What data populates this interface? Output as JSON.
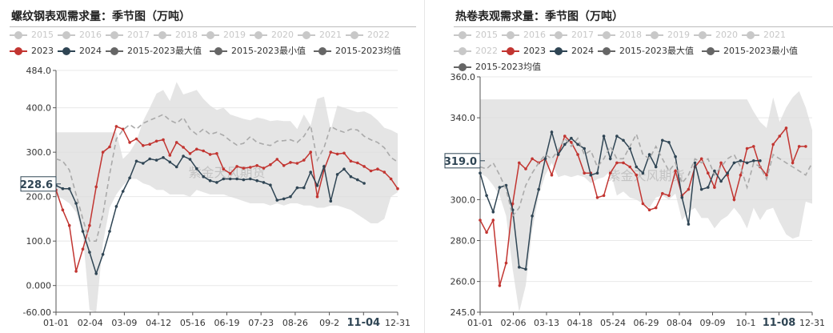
{
  "chart_data": [
    {
      "type": "line",
      "title": "螺纹钢表观需求量：季节图（万吨）",
      "legend_position": "top",
      "legend": [
        {
          "name": "2015",
          "color": "#c8c8c8",
          "faded": true
        },
        {
          "name": "2016",
          "color": "#c8c8c8",
          "faded": true
        },
        {
          "name": "2017",
          "color": "#c8c8c8",
          "faded": true
        },
        {
          "name": "2018",
          "color": "#c8c8c8",
          "faded": true
        },
        {
          "name": "2019",
          "color": "#c8c8c8",
          "faded": true
        },
        {
          "name": "2020",
          "color": "#c8c8c8",
          "faded": true
        },
        {
          "name": "2021",
          "color": "#c8c8c8",
          "faded": true
        },
        {
          "name": "2022",
          "color": "#c8c8c8",
          "faded": true
        },
        {
          "name": "2023",
          "color": "#c23531",
          "faded": false
        },
        {
          "name": "2024",
          "color": "#2f4554",
          "faded": false
        },
        {
          "name": "2015-2023最大值",
          "color": "#666666",
          "faded": false
        },
        {
          "name": "2015-2023最小值",
          "color": "#666666",
          "faded": false
        },
        {
          "name": "2015-2023均值",
          "color": "#666666",
          "faded": false
        }
      ],
      "y_ticks": [
        "-60.00",
        "0.000",
        "100.0",
        "200.0",
        "300.0",
        "400.0",
        "484.0"
      ],
      "ylim": [
        -60,
        484
      ],
      "x_ticks": [
        "01-01",
        "02-04",
        "03-09",
        "04-12",
        "05-16",
        "06-19",
        "07-23",
        "08-26",
        "09-2",
        "11-04",
        "12-31"
      ],
      "x_highlight": "11-04",
      "y_pointer": "228.6",
      "watermark": "紫金天风期货",
      "weeks": 52,
      "band_max": [
        345,
        345,
        345,
        345,
        345,
        345,
        345,
        345,
        345,
        345,
        285,
        300,
        325,
        370,
        400,
        432,
        440,
        415,
        458,
        430,
        435,
        440,
        420,
        405,
        395,
        400,
        385,
        380,
        375,
        372,
        378,
        375,
        370,
        372,
        370,
        370,
        352,
        385,
        360,
        420,
        425,
        350,
        405,
        400,
        395,
        390,
        392,
        385,
        372,
        355,
        350,
        342
      ],
      "band_min": [
        202,
        195,
        185,
        165,
        115,
        -55,
        -60,
        95,
        175,
        205,
        225,
        240,
        240,
        230,
        225,
        215,
        215,
        205,
        205,
        205,
        200,
        215,
        210,
        205,
        205,
        205,
        200,
        195,
        190,
        185,
        185,
        185,
        180,
        185,
        180,
        185,
        185,
        180,
        180,
        175,
        175,
        180,
        180,
        175,
        170,
        160,
        150,
        140,
        140,
        150,
        200,
        210
      ],
      "series": [
        {
          "name": "2023",
          "color": "#c23531",
          "values": [
            215,
            170,
            135,
            32,
            82,
            135,
            222,
            300,
            312,
            358,
            352,
            322,
            330,
            315,
            318,
            325,
            328,
            293,
            322,
            311,
            297,
            307,
            303,
            295,
            297,
            262,
            252,
            268,
            264,
            266,
            270,
            264,
            272,
            284,
            270,
            277,
            275,
            282,
            300,
            200,
            260,
            300,
            296,
            298,
            280,
            276,
            268,
            258,
            262,
            255,
            240,
            218
          ]
        },
        {
          "name": "2024",
          "color": "#2f4554",
          "values": [
            225,
            218,
            218,
            185,
            122,
            75,
            27,
            70,
            122,
            178,
            212,
            242,
            280,
            275,
            285,
            282,
            288,
            278,
            267,
            291,
            284,
            263,
            245,
            236,
            232,
            240,
            240,
            240,
            238,
            240,
            236,
            232,
            226,
            192,
            195,
            200,
            220,
            220,
            255,
            225,
            268,
            190,
            250,
            262,
            245,
            238,
            230
          ]
        },
        {
          "name": "2015-2023均值",
          "color": "#aaaaaa",
          "dashed": true,
          "values": [
            285,
            280,
            260,
            205,
            150,
            100,
            100,
            160,
            250,
            330,
            350,
            362,
            352,
            365,
            372,
            378,
            385,
            372,
            365,
            378,
            352,
            340,
            352,
            340,
            345,
            338,
            326,
            316,
            320,
            335,
            322,
            318,
            315,
            325,
            326,
            328,
            322,
            336,
            360,
            282,
            310,
            358,
            350,
            345,
            352,
            350,
            336,
            328,
            322,
            310,
            288,
            278
          ]
        }
      ]
    },
    {
      "type": "line",
      "title": "热卷表观需求量：季节图（万吨）",
      "legend_position": "top",
      "legend": [
        {
          "name": "2015",
          "color": "#c8c8c8",
          "faded": true
        },
        {
          "name": "2016",
          "color": "#c8c8c8",
          "faded": true
        },
        {
          "name": "2017",
          "color": "#c8c8c8",
          "faded": true
        },
        {
          "name": "2018",
          "color": "#c8c8c8",
          "faded": true
        },
        {
          "name": "2019",
          "color": "#c8c8c8",
          "faded": true
        },
        {
          "name": "2020",
          "color": "#c8c8c8",
          "faded": true
        },
        {
          "name": "2021",
          "color": "#c8c8c8",
          "faded": true
        },
        {
          "name": "2022",
          "color": "#c8c8c8",
          "faded": true
        },
        {
          "name": "2023",
          "color": "#c23531",
          "faded": false
        },
        {
          "name": "2024",
          "color": "#2f4554",
          "faded": false
        },
        {
          "name": "2015-2023最大值",
          "color": "#666666",
          "faded": false
        },
        {
          "name": "2015-2023最小值",
          "color": "#666666",
          "faded": false
        },
        {
          "name": "2015-2023均值",
          "color": "#666666",
          "faded": false
        }
      ],
      "y_ticks": [
        "245.0",
        "260.0",
        "280.0",
        "300.0",
        "320.0",
        "340.0",
        "360.0"
      ],
      "ylim": [
        245,
        360
      ],
      "x_ticks": [
        "01-01",
        "02-06",
        "03-13",
        "04-18",
        "05-24",
        "06-29",
        "08-04",
        "09-09",
        "10-1",
        "11-08",
        "12-31"
      ],
      "x_highlight": "11-08",
      "y_pointer": "319.0",
      "watermark": "紫金天风期货",
      "weeks": 52,
      "band_max": [
        349,
        349,
        349,
        349,
        349,
        349,
        349,
        349,
        349,
        349,
        349,
        349,
        349,
        349,
        349,
        349,
        349,
        349,
        349,
        349,
        349,
        349,
        349,
        349,
        349,
        349,
        349,
        349,
        349,
        349,
        349,
        349,
        349,
        349,
        349,
        349,
        349,
        349,
        349,
        349,
        349,
        349,
        343,
        338,
        335,
        350,
        338,
        345,
        350,
        353,
        345,
        334
      ],
      "band_min": [
        313,
        311,
        307,
        302,
        292,
        266,
        245,
        258,
        285,
        302,
        312,
        318,
        311,
        312,
        311,
        312,
        311,
        308,
        310,
        311,
        314,
        302,
        304,
        301,
        300,
        298,
        296,
        301,
        302,
        300,
        303,
        290,
        294,
        296,
        291,
        291,
        286,
        290,
        292,
        296,
        292,
        286,
        296,
        290,
        295,
        296,
        289,
        283,
        281,
        282,
        299,
        298
      ],
      "series": [
        {
          "name": "2023",
          "color": "#c23531",
          "values": [
            290,
            284,
            290,
            258,
            269,
            298,
            318,
            315,
            320,
            318,
            320,
            312,
            322,
            331,
            328,
            322,
            313,
            313,
            301,
            302,
            313,
            318,
            318,
            316,
            312,
            298,
            295,
            296,
            303,
            302,
            314,
            302,
            305,
            316,
            320,
            313,
            306,
            318,
            312,
            300,
            312,
            325,
            326,
            316,
            312,
            327,
            331,
            335,
            318,
            326,
            326
          ]
        },
        {
          "name": "2024",
          "color": "#2f4554",
          "values": [
            313,
            302,
            294,
            306,
            307,
            295,
            267,
            266,
            292,
            305,
            320,
            333,
            322,
            327,
            330,
            327,
            325,
            312,
            313,
            331,
            320,
            331,
            329,
            325,
            316,
            313,
            322,
            316,
            329,
            328,
            321,
            301,
            288,
            318,
            305,
            306,
            314,
            309,
            313,
            318,
            319,
            318,
            319,
            319
          ]
        },
        {
          "name": "2015-2023均值",
          "color": "#aaaaaa",
          "dashed": true,
          "values": [
            316,
            315,
            318,
            312,
            305,
            292,
            296,
            307,
            313,
            318,
            322,
            320,
            324,
            330,
            326,
            330,
            322,
            324,
            316,
            320,
            326,
            320,
            320,
            326,
            332,
            322,
            320,
            326,
            320,
            314,
            318,
            308,
            312,
            320,
            318,
            320,
            312,
            316,
            320,
            322,
            316,
            306,
            318,
            316,
            310,
            322,
            320,
            318,
            316,
            314,
            312,
            318
          ]
        }
      ]
    }
  ]
}
